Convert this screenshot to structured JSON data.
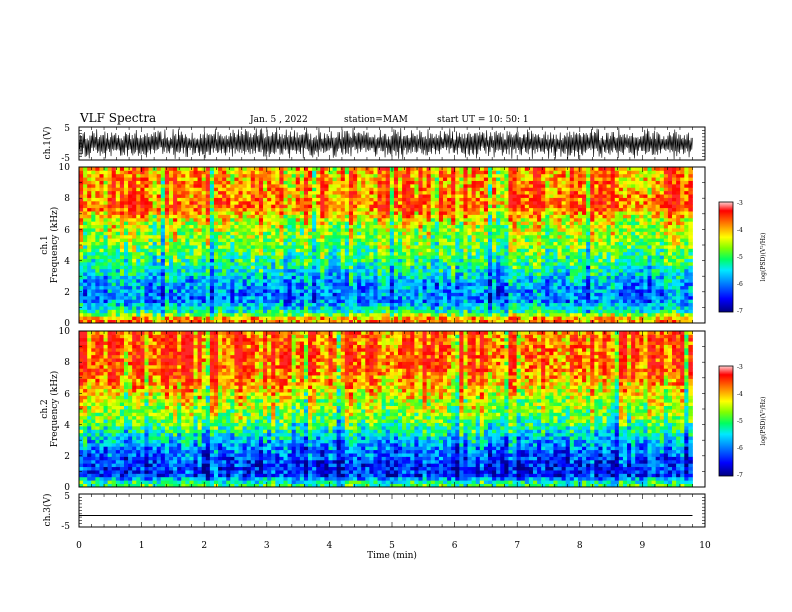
{
  "header": {
    "title": "VLF Spectra",
    "date": "Jan. 5 , 2022",
    "station": "station=MAM",
    "start": "start UT =   10: 50: 1"
  },
  "colors": {
    "spectrogram_scale": [
      "#00008b",
      "#0000ff",
      "#0080ff",
      "#00e0ff",
      "#00ff80",
      "#40ff00",
      "#c0ff00",
      "#ffff00",
      "#ffa000",
      "#ff2000"
    ]
  },
  "chart_data": [
    {
      "type": "line",
      "panel": "ch1-waveform",
      "ylabel": "ch.1(V)",
      "ylim": [
        -5,
        5
      ],
      "ytick_labels": [
        "5",
        "-5"
      ],
      "xlim": [
        0,
        10
      ],
      "description_values": {
        "amplitude_range": [
          -5,
          5
        ],
        "data_end_min": 9.8
      }
    },
    {
      "type": "heatmap",
      "panel": "ch1-spectrogram",
      "ylabel_line1": "ch.1",
      "ylabel_line2": "Frequency (kHz)",
      "ylim": [
        0,
        10
      ],
      "ytick_labels": [
        "0",
        "2",
        "4",
        "6",
        "8",
        "10"
      ],
      "xlim": [
        0,
        10
      ],
      "data_end_min": 9.8,
      "colorbar": {
        "label": "log(PSD)(V²/Hz)",
        "range": [
          -7,
          -3
        ],
        "tick_labels": [
          "-3",
          "-4",
          "-5",
          "-6",
          "-7"
        ]
      },
      "log_psd_profile": {
        "freq_khz": [
          0.25,
          0.75,
          1.5,
          2.5,
          3.5,
          4.5,
          5.5,
          6.5,
          7.5,
          8.5,
          9.5
        ],
        "mean_log_psd": [
          -3.8,
          -5.2,
          -6.0,
          -5.8,
          -5.3,
          -4.9,
          -4.6,
          -4.4,
          -3.6,
          -3.8,
          -3.9
        ]
      }
    },
    {
      "type": "heatmap",
      "panel": "ch2-spectrogram",
      "ylabel_line1": "ch.2",
      "ylabel_line2": "Frequency (kHz)",
      "ylim": [
        0,
        10
      ],
      "ytick_labels": [
        "0",
        "2",
        "4",
        "6",
        "8",
        "10"
      ],
      "xlim": [
        0,
        10
      ],
      "data_end_min": 9.8,
      "colorbar": {
        "label": "log(PSD)(V²/Hz)",
        "range": [
          -7,
          -3
        ],
        "tick_labels": [
          "-3",
          "-4",
          "-5",
          "-6",
          "-7"
        ]
      },
      "log_psd_profile": {
        "freq_khz": [
          0.25,
          0.75,
          1.5,
          2.5,
          3.5,
          4.5,
          5.5,
          6.5,
          7.5,
          8.5,
          9.5
        ],
        "mean_log_psd": [
          -5.0,
          -6.3,
          -6.3,
          -5.9,
          -5.3,
          -4.7,
          -4.4,
          -4.0,
          -3.6,
          -3.5,
          -3.6
        ]
      }
    },
    {
      "type": "line",
      "panel": "ch3-waveform",
      "ylabel": "ch.3(V)",
      "ylim": [
        -5,
        5
      ],
      "ytick_labels": [
        "5",
        "-5"
      ],
      "xlim": [
        0,
        10
      ],
      "constant_value": -1.5
    }
  ],
  "xaxis": {
    "label": "Time (min)",
    "tick_labels": [
      "0",
      "1",
      "2",
      "3",
      "4",
      "5",
      "6",
      "7",
      "8",
      "9",
      "10"
    ]
  }
}
